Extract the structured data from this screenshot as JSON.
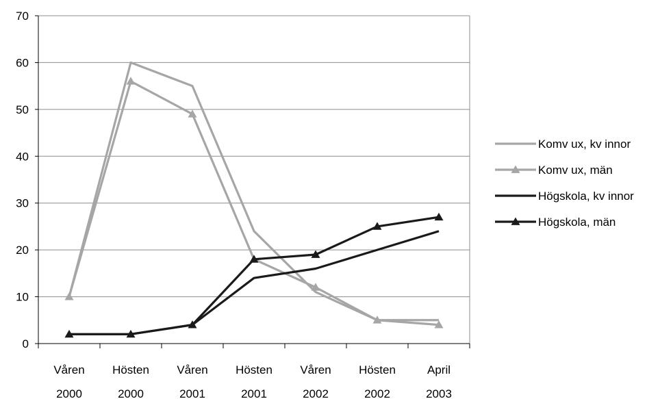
{
  "chart_data": {
    "type": "line",
    "title": "",
    "xlabel": "",
    "ylabel": "",
    "ylim": [
      0,
      70
    ],
    "yticks": [
      0,
      10,
      20,
      30,
      40,
      50,
      60,
      70
    ],
    "grid": true,
    "legend_position": "right",
    "categories": [
      [
        "Våren",
        "2000"
      ],
      [
        "Hösten",
        "2000"
      ],
      [
        "Våren",
        "2001"
      ],
      [
        "Hösten",
        "2001"
      ],
      [
        "Våren",
        "2002"
      ],
      [
        "Hösten",
        "2002"
      ],
      [
        "April",
        "2003"
      ]
    ],
    "series": [
      {
        "name": "Komv ux, kv innor",
        "values": [
          10,
          60,
          55,
          24,
          11,
          5,
          5
        ],
        "color": "#a6a6a6",
        "marker": "none"
      },
      {
        "name": "Komv ux, män",
        "values": [
          10,
          56,
          49,
          18,
          12,
          5,
          4
        ],
        "color": "#a6a6a6",
        "marker": "triangle"
      },
      {
        "name": "Högskola, kv innor",
        "values": [
          2,
          2,
          4,
          14,
          16,
          20,
          24
        ],
        "color": "#1a1a1a",
        "marker": "none"
      },
      {
        "name": "Högskola, män",
        "values": [
          2,
          2,
          4,
          18,
          19,
          25,
          27
        ],
        "color": "#1a1a1a",
        "marker": "triangle"
      }
    ]
  }
}
